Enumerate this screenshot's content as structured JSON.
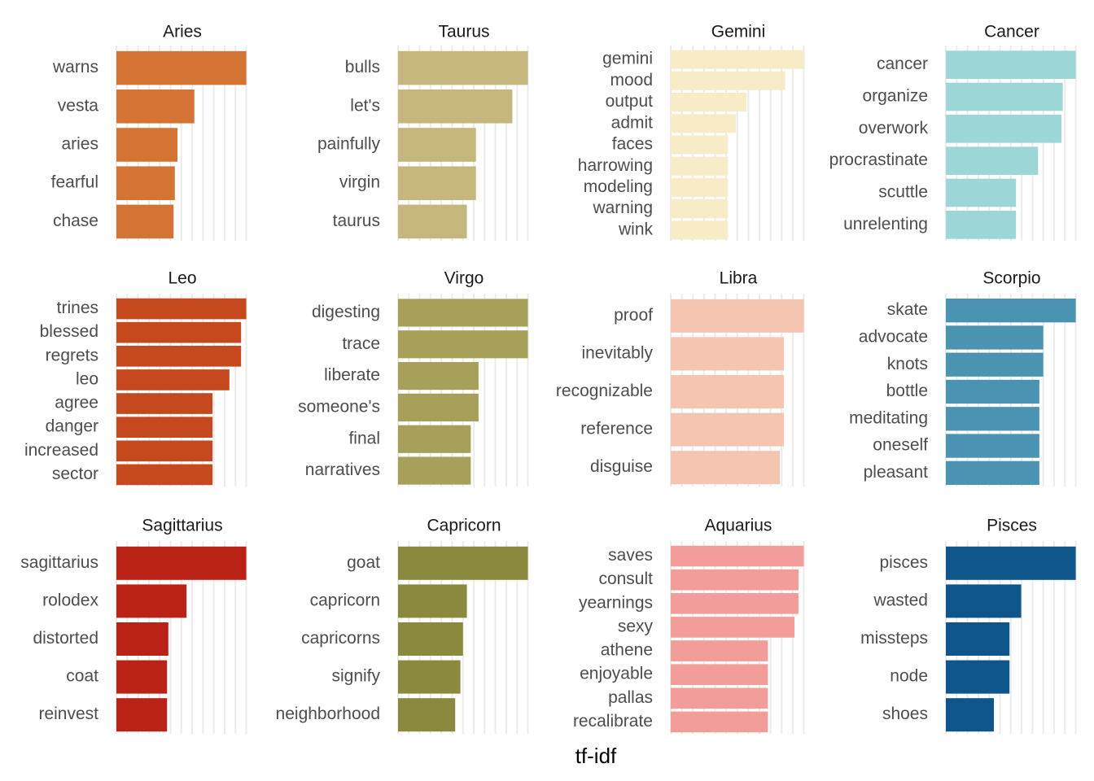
{
  "chart_data": {
    "type": "bar",
    "orientation": "horizontal",
    "layout": "facet-wrap 4 columns x 3 rows, free y scales",
    "xlabel": "tf-idf",
    "ylabel": "",
    "grid": true,
    "legend": "none",
    "panels": [
      {
        "title": "Aries",
        "color": "#D37435",
        "words": [
          "warns",
          "vesta",
          "aries",
          "fearful",
          "chase"
        ],
        "values": [
          1.0,
          0.6,
          0.47,
          0.45,
          0.44
        ]
      },
      {
        "title": "Taurus",
        "color": "#C4B67C",
        "words": [
          "bulls",
          "let's",
          "painfully",
          "virgin",
          "taurus"
        ],
        "values": [
          1.0,
          0.88,
          0.6,
          0.6,
          0.53
        ]
      },
      {
        "title": "Gemini",
        "color": "#F8ECC8",
        "words": [
          "gemini",
          "mood",
          "output",
          "admit",
          "faces",
          "harrowing",
          "modeling",
          "warning",
          "wink"
        ],
        "values": [
          1.0,
          0.86,
          0.57,
          0.49,
          0.43,
          0.43,
          0.43,
          0.43,
          0.43
        ]
      },
      {
        "title": "Cancer",
        "color": "#9DD6D7",
        "words": [
          "cancer",
          "organize",
          "overwork",
          "procrastinate",
          "scuttle",
          "unrelenting"
        ],
        "values": [
          1.0,
          0.9,
          0.89,
          0.71,
          0.54,
          0.54
        ]
      },
      {
        "title": "Leo",
        "color": "#C6481F",
        "words": [
          "trines",
          "blessed",
          "regrets",
          "leo",
          "agree",
          "danger",
          "increased",
          "sector"
        ],
        "values": [
          1.0,
          0.96,
          0.96,
          0.87,
          0.74,
          0.74,
          0.74,
          0.74
        ]
      },
      {
        "title": "Virgo",
        "color": "#A7A05B",
        "words": [
          "digesting",
          "trace",
          "liberate",
          "someone's",
          "final",
          "narratives"
        ],
        "values": [
          1.0,
          1.0,
          0.62,
          0.62,
          0.56,
          0.56
        ]
      },
      {
        "title": "Libra",
        "color": "#F6C5B2",
        "words": [
          "proof",
          "inevitably",
          "recognizable",
          "reference",
          "disguise"
        ],
        "values": [
          1.0,
          0.85,
          0.85,
          0.85,
          0.82
        ]
      },
      {
        "title": "Scorpio",
        "color": "#4A94B1",
        "words": [
          "skate",
          "advocate",
          "knots",
          "bottle",
          "meditating",
          "oneself",
          "pleasant"
        ],
        "values": [
          1.0,
          0.75,
          0.75,
          0.72,
          0.72,
          0.72,
          0.72
        ]
      },
      {
        "title": "Sagittarius",
        "color": "#BA2217",
        "words": [
          "sagittarius",
          "rolodex",
          "distorted",
          "coat",
          "reinvest"
        ],
        "values": [
          1.0,
          0.54,
          0.4,
          0.39,
          0.39
        ]
      },
      {
        "title": "Capricorn",
        "color": "#8B893D",
        "words": [
          "goat",
          "capricorn",
          "capricorns",
          "signify",
          "neighborhood"
        ],
        "values": [
          1.0,
          0.53,
          0.5,
          0.48,
          0.44
        ]
      },
      {
        "title": "Aquarius",
        "color": "#F29D9A",
        "words": [
          "saves",
          "consult",
          "yearnings",
          "sexy",
          "athene",
          "enjoyable",
          "pallas",
          "recalibrate"
        ],
        "values": [
          1.0,
          0.96,
          0.96,
          0.93,
          0.73,
          0.73,
          0.73,
          0.73
        ]
      },
      {
        "title": "Pisces",
        "color": "#0E5689",
        "words": [
          "pisces",
          "wasted",
          "missteps",
          "node",
          "shoes"
        ],
        "values": [
          1.0,
          0.58,
          0.49,
          0.49,
          0.37
        ]
      }
    ]
  }
}
